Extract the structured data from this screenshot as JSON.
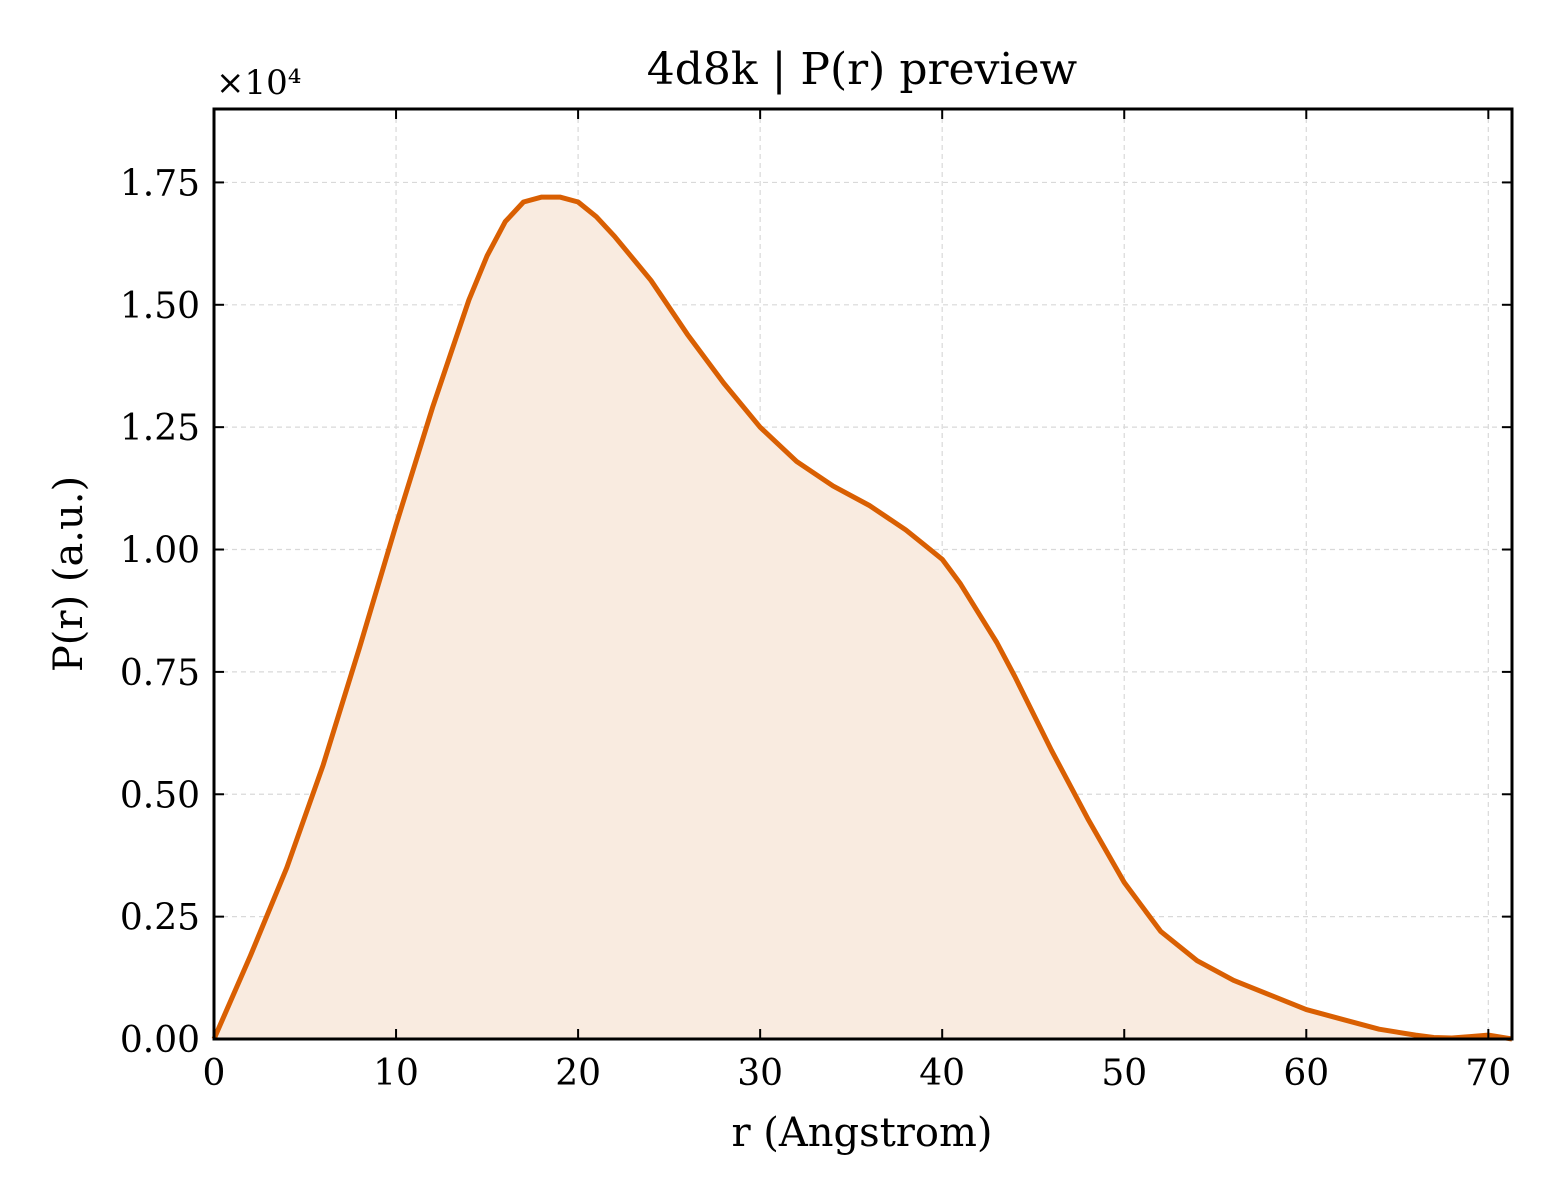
{
  "chart_data": {
    "type": "area",
    "title": "4d8k | P(r) preview",
    "xlabel": "r (Angstrom)",
    "ylabel": "P(r) (a.u.)",
    "y_multiplier_label": "×10⁴",
    "xlim": [
      0,
      71.3
    ],
    "ylim": [
      0,
      1.9
    ],
    "y_scale_note_value": 10000,
    "xticks": [
      0,
      10,
      20,
      30,
      40,
      50,
      60,
      70
    ],
    "xtick_labels": [
      "0",
      "10",
      "20",
      "30",
      "40",
      "50",
      "60",
      "70"
    ],
    "yticks": [
      0,
      0.25,
      0.5,
      0.75,
      1.0,
      1.25,
      1.5,
      1.75
    ],
    "ytick_labels": [
      "0.00",
      "0.25",
      "0.50",
      "0.75",
      "1.00",
      "1.25",
      "1.50",
      "1.75"
    ],
    "grid": true,
    "line_color": "#d95f02",
    "fill_color": "#f9ebe0",
    "series": [
      {
        "x": [
          0,
          2,
          4,
          6,
          8,
          10,
          12,
          13,
          14,
          15,
          16,
          17,
          18,
          19,
          20,
          21,
          22,
          24,
          26,
          28,
          30,
          32,
          34,
          36,
          38,
          39,
          40,
          41,
          42,
          43,
          44,
          46,
          48,
          50,
          52,
          54,
          56,
          58,
          60,
          62,
          64,
          66,
          67,
          68,
          69,
          70,
          71.3
        ],
        "y": [
          0,
          0.17,
          0.35,
          0.56,
          0.8,
          1.05,
          1.29,
          1.4,
          1.51,
          1.6,
          1.67,
          1.71,
          1.72,
          1.72,
          1.71,
          1.68,
          1.64,
          1.55,
          1.44,
          1.34,
          1.25,
          1.18,
          1.13,
          1.09,
          1.04,
          1.01,
          0.98,
          0.93,
          0.87,
          0.81,
          0.74,
          0.59,
          0.45,
          0.32,
          0.22,
          0.16,
          0.12,
          0.09,
          0.06,
          0.04,
          0.02,
          0.008,
          0.003,
          0.002,
          0.005,
          0.008,
          0.0
        ]
      }
    ]
  }
}
